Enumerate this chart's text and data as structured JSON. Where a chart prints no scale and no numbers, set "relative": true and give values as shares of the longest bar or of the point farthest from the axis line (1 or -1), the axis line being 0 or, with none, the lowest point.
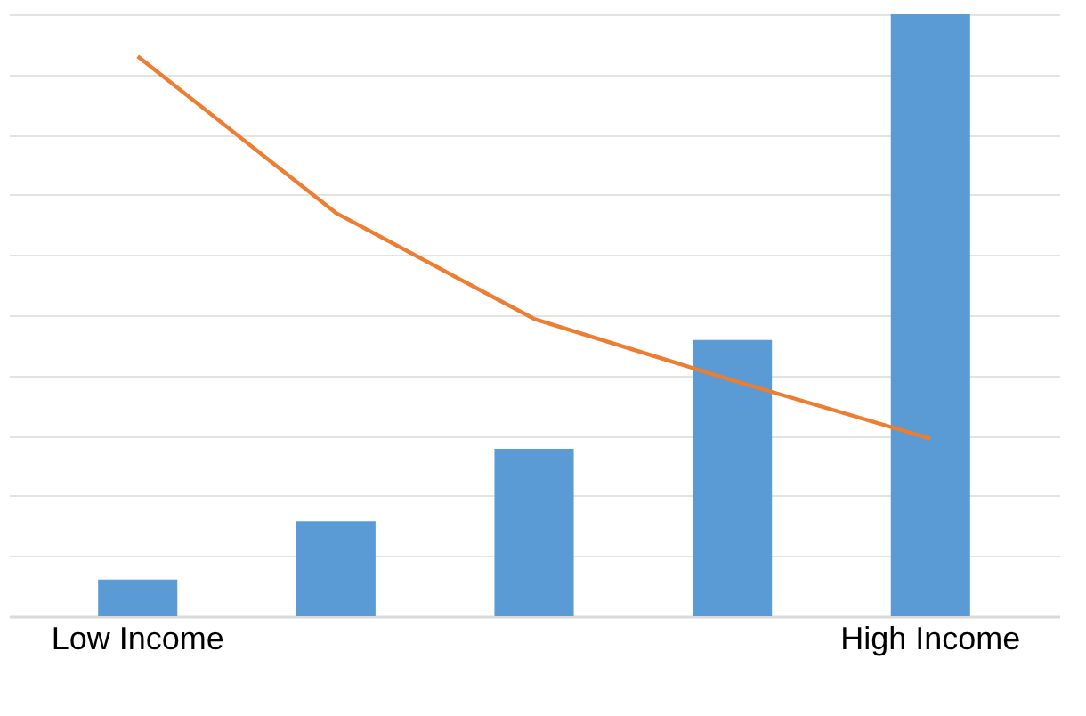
{
  "chart_data": {
    "type": "bar",
    "relative": true,
    "categories": [
      "Low Income",
      null,
      null,
      null,
      "High Income"
    ],
    "series": [
      {
        "color": "#5b9bd5",
        "values": [
          0.061,
          0.158,
          0.278,
          0.459,
          1
        ]
      },
      {
        "type": "line",
        "color": "#ed7d31",
        "values": [
          0.93,
          0.67,
          0.494,
          0.392,
          0.295
        ]
      }
    ],
    "grid": "y",
    "marker": "none"
  }
}
